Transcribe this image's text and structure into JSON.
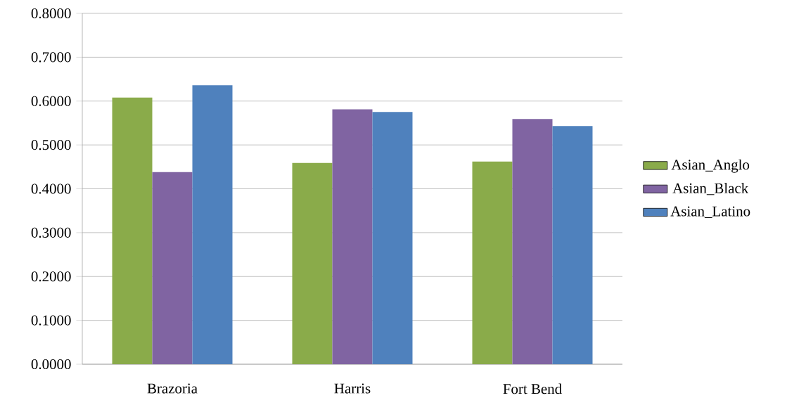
{
  "chart_data": {
    "type": "bar",
    "categories": [
      "Brazoria",
      "Harris",
      "Fort Bend"
    ],
    "series": [
      {
        "name": "Asian_Anglo",
        "color": "#8aab4a",
        "values": [
          0.608,
          0.459,
          0.462
        ]
      },
      {
        "name": "Asian_Black",
        "color": "#8064a2",
        "values": [
          0.438,
          0.581,
          0.559
        ]
      },
      {
        "name": "Asian_Latino",
        "color": "#4f81bd",
        "values": [
          0.636,
          0.575,
          0.543
        ]
      }
    ],
    "ylim": [
      0,
      0.8
    ],
    "yticks": [
      {
        "value": 0,
        "label": "0.0000"
      },
      {
        "value": 0.1,
        "label": "0.1000"
      },
      {
        "value": 0.2,
        "label": "0.2000"
      },
      {
        "value": 0.3,
        "label": "0.3000"
      },
      {
        "value": 0.4,
        "label": "0.4000"
      },
      {
        "value": 0.5,
        "label": "0.5000"
      },
      {
        "value": 0.6,
        "label": "0.6000"
      },
      {
        "value": 0.7,
        "label": "0.7000"
      },
      {
        "value": 0.8,
        "label": "0.8000"
      }
    ],
    "grid": "y",
    "legend": "right"
  }
}
